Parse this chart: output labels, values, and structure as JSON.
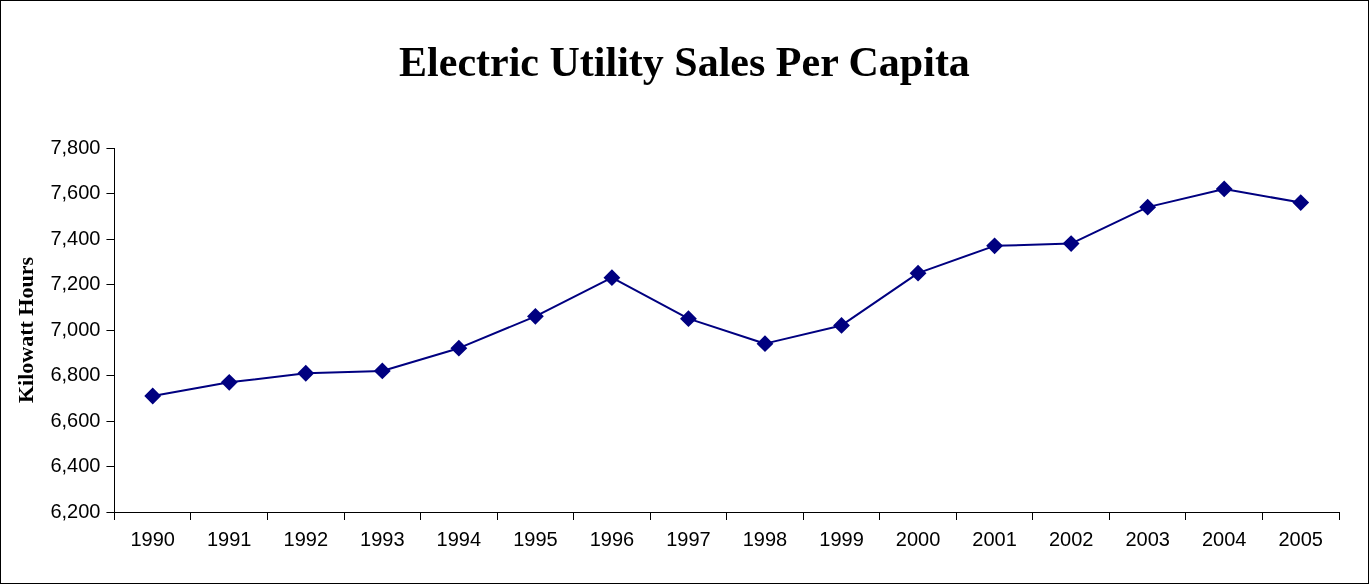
{
  "chart_data": {
    "type": "line",
    "title": "Electric Utility Sales Per Capita",
    "ylabel": "Kilowatt Hours",
    "categories": [
      "1990",
      "1991",
      "1992",
      "1993",
      "1994",
      "1995",
      "1996",
      "1997",
      "1998",
      "1999",
      "2000",
      "2001",
      "2002",
      "2003",
      "2004",
      "2005"
    ],
    "series": [
      {
        "color": "#000080",
        "values": [
          6710,
          6770,
          6810,
          6820,
          6920,
          7060,
          7230,
          7050,
          6940,
          7020,
          7250,
          7370,
          7380,
          7540,
          7620,
          7560
        ]
      }
    ],
    "ylim": [
      6200,
      7800
    ],
    "yticks": [
      {
        "value": 6200,
        "label": "6,200"
      },
      {
        "value": 6400,
        "label": "6,400"
      },
      {
        "value": 6600,
        "label": "6,600"
      },
      {
        "value": 6800,
        "label": "6,800"
      },
      {
        "value": 7000,
        "label": "7,000"
      },
      {
        "value": 7200,
        "label": "7,200"
      },
      {
        "value": 7400,
        "label": "7,400"
      },
      {
        "value": 7600,
        "label": "7,600"
      },
      {
        "value": 7800,
        "label": "7,800"
      }
    ],
    "grid": false,
    "legend": false,
    "marker": "diamond",
    "line_style": "solid"
  }
}
